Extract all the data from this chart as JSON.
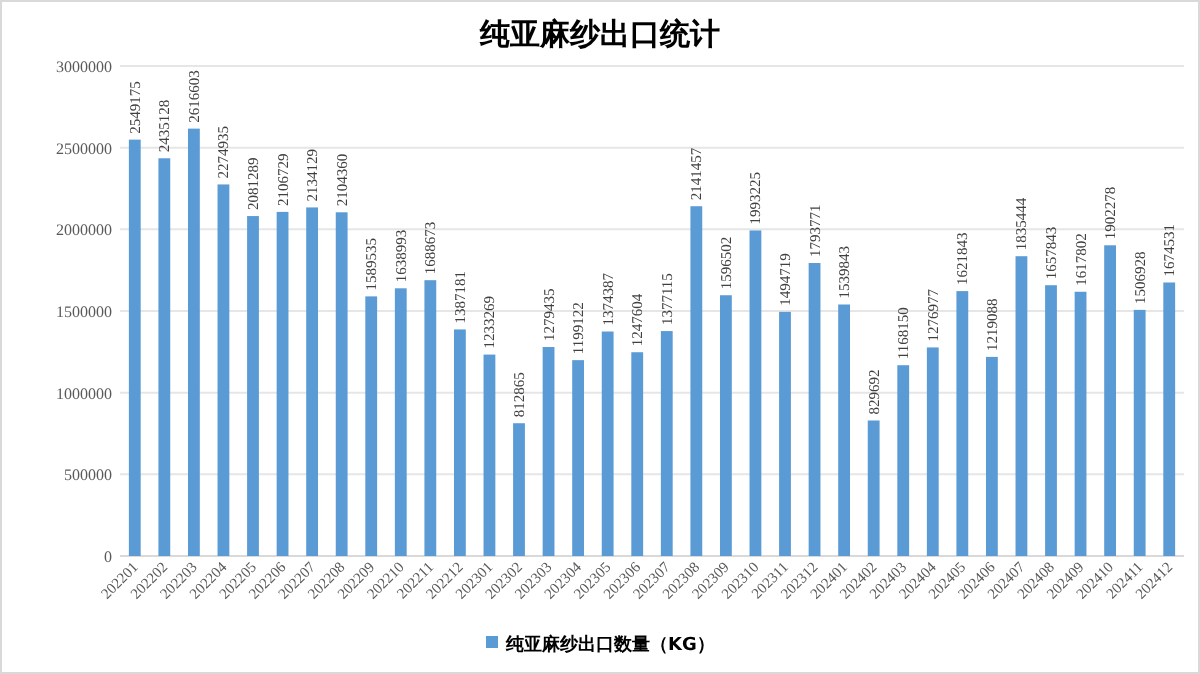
{
  "chart_data": {
    "type": "bar",
    "title": "纯亚麻纱出口统计",
    "categories": [
      "202201",
      "202202",
      "202203",
      "202204",
      "202205",
      "202206",
      "202207",
      "202208",
      "202209",
      "202210",
      "202211",
      "202212",
      "202301",
      "202302",
      "202303",
      "202304",
      "202305",
      "202306",
      "202307",
      "202308",
      "202309",
      "202310",
      "202311",
      "202312",
      "202401",
      "202402",
      "202403",
      "202404",
      "202405",
      "202406",
      "202407",
      "202408",
      "202409",
      "202410",
      "202411",
      "202412"
    ],
    "series": [
      {
        "name": "纯亚麻纱出口数量（KG）",
        "color": "#5b9bd5",
        "values": [
          2549175,
          2435128,
          2616603,
          2274935,
          2081289,
          2106729,
          2134129,
          2104360,
          1589535,
          1638993,
          1688673,
          1387181,
          1233269,
          812865,
          1279435,
          1199122,
          1374387,
          1247604,
          1377115,
          2141457,
          1596502,
          1993225,
          1494719,
          1793771,
          1539843,
          829692,
          1168150,
          1276977,
          1621843,
          1219088,
          1835444,
          1657843,
          1617802,
          1902278,
          1506928,
          1674531
        ]
      }
    ],
    "ylim": [
      0,
      3000000
    ],
    "yticks": [
      0,
      500000,
      1000000,
      1500000,
      2000000,
      2500000,
      3000000
    ],
    "grid": "y",
    "legend": "bottom",
    "data_labels": true
  }
}
